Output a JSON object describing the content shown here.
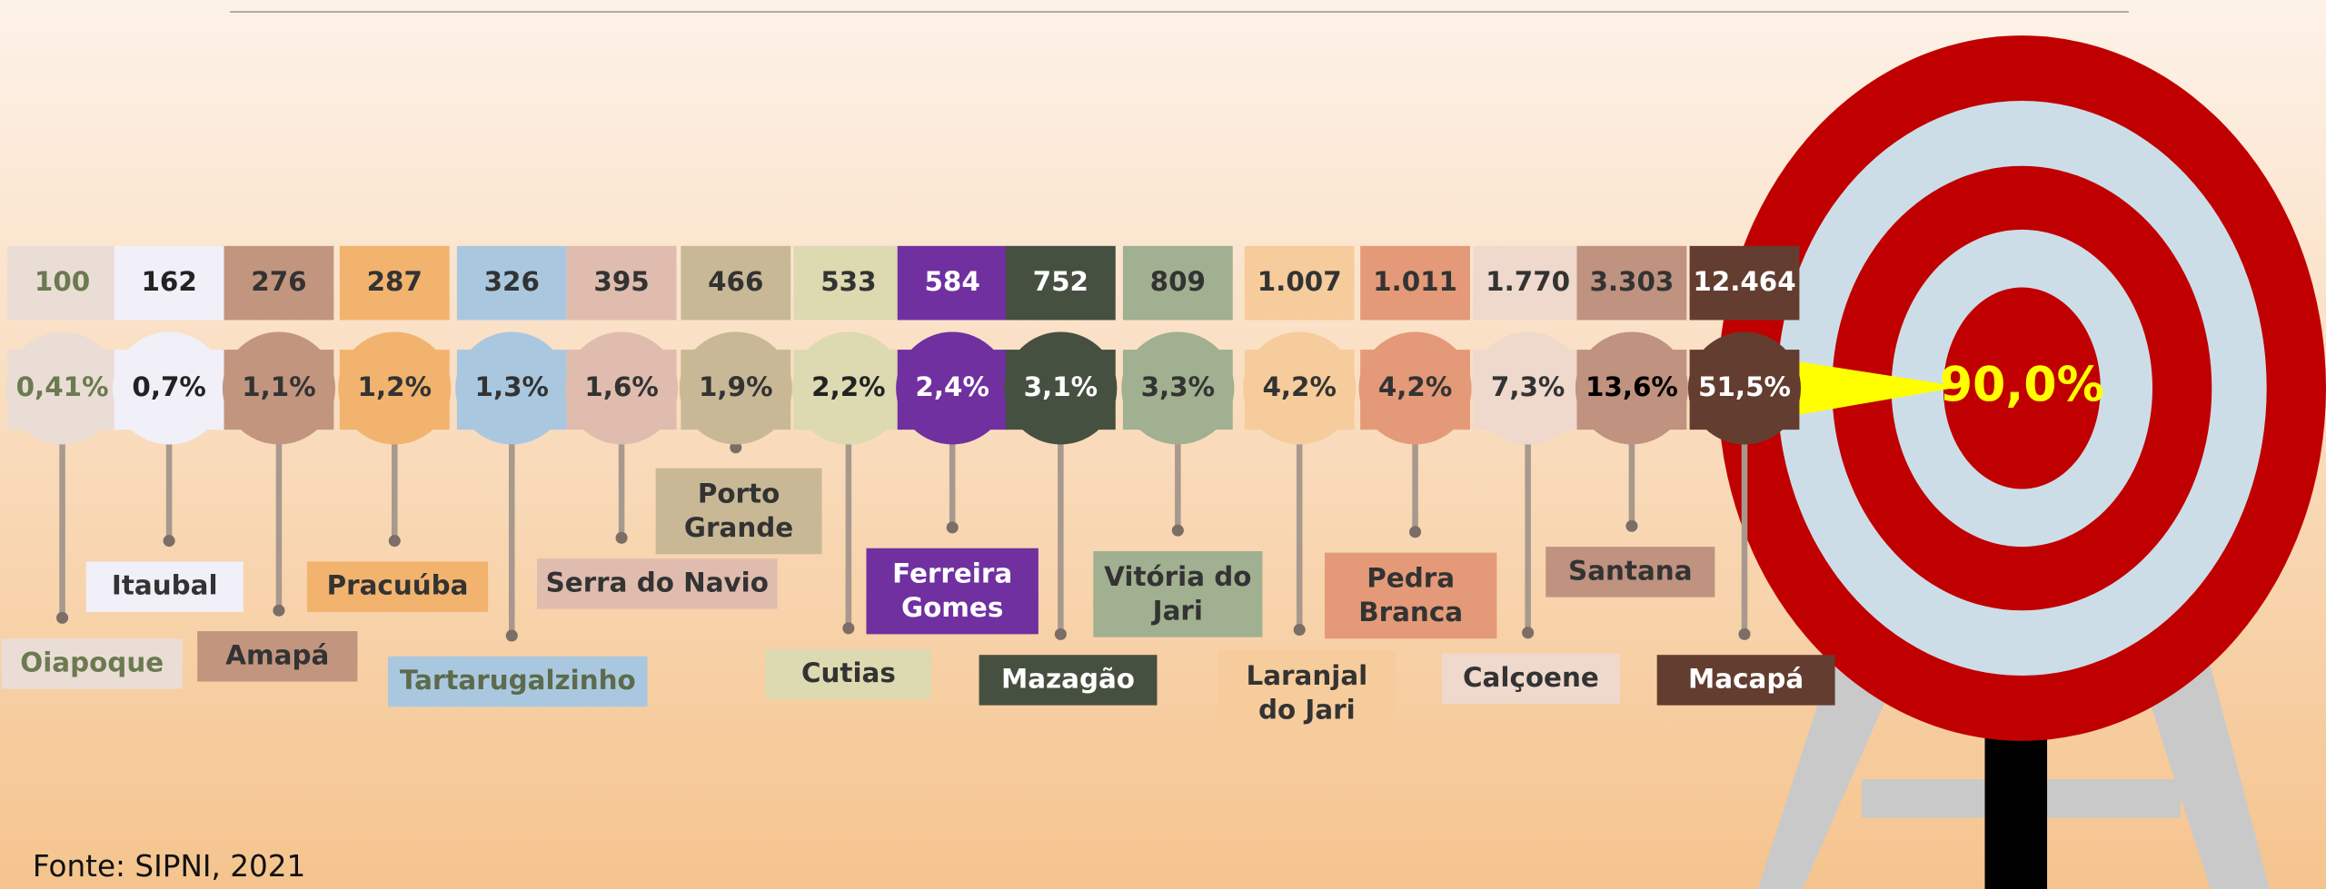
{
  "items": [
    {
      "count": "100",
      "pct": "0,41%",
      "name": [
        "Oiapoque"
      ]
    },
    {
      "count": "162",
      "pct": "0,7%",
      "name": [
        "Itaubal"
      ]
    },
    {
      "count": "276",
      "pct": "1,1%",
      "name": [
        "Amapá"
      ]
    },
    {
      "count": "287",
      "pct": "1,2%",
      "name": [
        "Pracuúba"
      ]
    },
    {
      "count": "326",
      "pct": "1,3%",
      "name": [
        "Tartarugalzinho"
      ]
    },
    {
      "count": "395",
      "pct": "1,6%",
      "name": [
        "Serra do Navio"
      ]
    },
    {
      "count": "466",
      "pct": "1,9%",
      "name": [
        "Porto",
        "Grande"
      ]
    },
    {
      "count": "533",
      "pct": "2,2%",
      "name": [
        "Cutias"
      ]
    },
    {
      "count": "584",
      "pct": "2,4%",
      "name": [
        "Ferreira",
        "Gomes"
      ]
    },
    {
      "count": "752",
      "pct": "3,1%",
      "name": [
        "Mazagão"
      ]
    },
    {
      "count": "809",
      "pct": "3,3%",
      "name": [
        "Vitória do",
        "Jari"
      ]
    },
    {
      "count": "1.007",
      "pct": "4,2%",
      "name": [
        "Laranjal",
        "do Jari"
      ]
    },
    {
      "count": "1.011",
      "pct": "4,2%",
      "name": [
        "Pedra",
        "Branca"
      ]
    },
    {
      "count": "1.770",
      "pct": "7,3%",
      "name": [
        "Calçoene"
      ]
    },
    {
      "count": "3.303",
      "pct": "13,6%",
      "name": [
        "Santana"
      ]
    },
    {
      "count": "12.464",
      "pct": "51,5%",
      "name": [
        "Macapá"
      ]
    }
  ],
  "target_label": "90,0%",
  "source": "Fonte: SIPNI, 2021"
}
